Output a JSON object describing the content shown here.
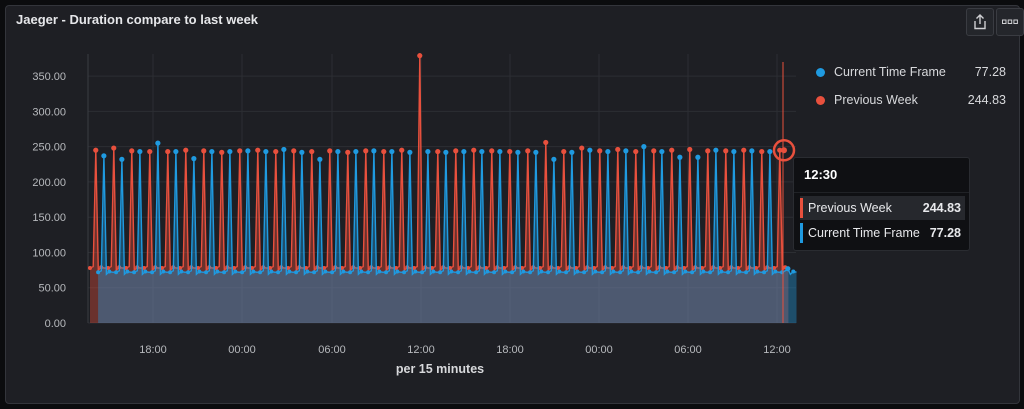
{
  "panel": {
    "title": "Jaeger - Duration compare to last week",
    "share_icon": "share-icon",
    "more_icon": "more-icon"
  },
  "legend": [
    {
      "name": "Current Time Frame",
      "value": "77.28",
      "color": "#1f9ae0"
    },
    {
      "name": "Previous Week",
      "value": "244.83",
      "color": "#e8503d"
    }
  ],
  "tooltip": {
    "time": "12:30",
    "rows": [
      {
        "name": "Previous Week",
        "value": "244.83",
        "color": "#e8503d"
      },
      {
        "name": "Current Time Frame",
        "value": "77.28",
        "color": "#1f9ae0"
      }
    ]
  },
  "chart_data": {
    "type": "area",
    "xlabel": "per 15 minutes",
    "ylim": [
      0,
      370
    ],
    "y_ticks": [
      "0.00",
      "50.00",
      "100.00",
      "150.00",
      "200.00",
      "250.00",
      "300.00",
      "350.00"
    ],
    "x_ticks": [
      "18:00",
      "00:00",
      "06:00",
      "12:00",
      "18:00",
      "00:00",
      "06:00",
      "12:00"
    ],
    "grid": true,
    "series": [
      {
        "name": "Previous Week",
        "color": "#e8503d",
        "baseline": 78,
        "spikes": [
          245,
          248,
          244,
          243,
          243,
          245,
          244,
          242,
          244,
          245,
          243,
          244,
          243,
          244,
          242,
          244,
          243,
          245,
          379,
          243,
          244,
          245,
          244,
          243,
          244,
          256,
          243,
          248,
          244,
          246,
          243,
          244,
          245,
          246,
          244,
          244,
          245,
          243,
          245
        ]
      },
      {
        "name": "Current Time Frame",
        "color": "#1f9ae0",
        "baseline": 72,
        "spikes": [
          237,
          232,
          243,
          255,
          243,
          233,
          243,
          243,
          244,
          243,
          246,
          242,
          232,
          243,
          243,
          244,
          243,
          242,
          243,
          242,
          243,
          243,
          243,
          242,
          242,
          232,
          242,
          245,
          243,
          244,
          250,
          243,
          235,
          235,
          245,
          243,
          244,
          243,
          77
        ]
      }
    ]
  }
}
